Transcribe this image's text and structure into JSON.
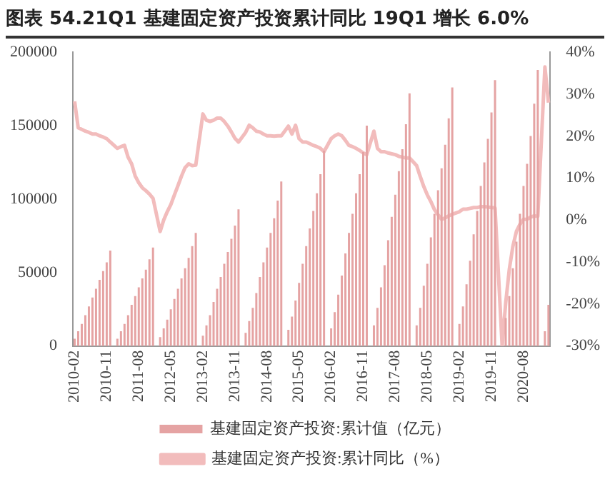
{
  "chart_data": {
    "type": "bar",
    "title": "图表 54.21Q1 基建固定资产投资累计同比 19Q1 增长 6.0%",
    "categories": [
      "2010-02",
      null,
      null,
      null,
      null,
      null,
      null,
      null,
      null,
      "2010-11",
      null,
      null,
      null,
      null,
      null,
      null,
      null,
      null,
      "2011-08",
      null,
      null,
      null,
      null,
      null,
      null,
      null,
      null,
      "2012-05",
      null,
      null,
      null,
      null,
      null,
      null,
      null,
      null,
      "2013-02",
      null,
      null,
      null,
      null,
      null,
      null,
      null,
      null,
      "2013-11",
      null,
      null,
      null,
      null,
      null,
      null,
      null,
      null,
      "2014-08",
      null,
      null,
      null,
      null,
      null,
      null,
      null,
      null,
      "2015-05",
      null,
      null,
      null,
      null,
      null,
      null,
      null,
      null,
      "2016-02",
      null,
      null,
      null,
      null,
      null,
      null,
      null,
      null,
      "2016-11",
      null,
      null,
      null,
      null,
      null,
      null,
      null,
      null,
      "2017-08",
      null,
      null,
      null,
      null,
      null,
      null,
      null,
      null,
      "2018-05",
      null,
      null,
      null,
      null,
      null,
      null,
      null,
      null,
      "2019-02",
      null,
      null,
      null,
      null,
      null,
      null,
      null,
      null,
      "2019-11",
      null,
      null,
      null,
      null,
      null,
      null,
      null,
      null,
      "2020-08",
      null,
      null,
      null,
      null,
      null,
      null,
      null
    ],
    "series": [
      {
        "name": "基建固定资产投资:累计值（亿元）",
        "color": "#e5a3a3",
        "values": [
          5000,
          10000,
          15000,
          21000,
          27000,
          33000,
          39000,
          45000,
          51000,
          57000,
          65000,
          null,
          5000,
          10000,
          15000,
          21000,
          28000,
          34000,
          40000,
          46000,
          52000,
          59000,
          67000,
          null,
          6000,
          12000,
          18000,
          25000,
          32000,
          39000,
          46000,
          53000,
          60000,
          68000,
          77000,
          null,
          7000,
          14000,
          21000,
          30000,
          39000,
          47000,
          56000,
          64000,
          73000,
          82000,
          93000,
          null,
          9000,
          17000,
          26000,
          36000,
          47000,
          57000,
          67000,
          77000,
          87000,
          99000,
          112000,
          null,
          11000,
          20000,
          31000,
          43000,
          56000,
          68000,
          80000,
          92000,
          104000,
          117000,
          133000,
          null,
          12000,
          23000,
          35000,
          48000,
          63000,
          77000,
          90000,
          104000,
          117000,
          132000,
          150000,
          null,
          14000,
          26000,
          40000,
          55000,
          72000,
          88000,
          103000,
          119000,
          134000,
          151000,
          172000,
          null,
          14000,
          26000,
          41000,
          56000,
          74000,
          90000,
          106000,
          121000,
          137000,
          155000,
          176000,
          null,
          15000,
          27000,
          42000,
          58000,
          76000,
          92000,
          109000,
          125000,
          141000,
          159000,
          181000,
          null,
          null,
          19000,
          34000,
          53000,
          71000,
          90000,
          109000,
          124000,
          143000,
          165000,
          188000,
          null,
          10000,
          28000
        ]
      },
      {
        "name": "基建固定资产投资:累计同比（%）",
        "type": "line",
        "axis": "y2",
        "color": "#f2bcbc",
        "values": [
          28.3,
          22,
          21.6,
          21.2,
          20.9,
          20.5,
          20.5,
          20.1,
          19.8,
          19.4,
          18.6,
          null,
          17.1,
          17.5,
          17.8,
          15,
          13.4,
          10.5,
          8.9,
          7.7,
          7,
          6.2,
          5.2,
          null,
          -2.7,
          0,
          2,
          3.7,
          6,
          8.2,
          10.5,
          12.5,
          13.4,
          13,
          13.1,
          null,
          25.3,
          23.8,
          23.5,
          23.8,
          24.3,
          24.3,
          23.5,
          22.4,
          21,
          19.5,
          18.6,
          null,
          20.9,
          22.6,
          22,
          21.2,
          21,
          20.5,
          20.1,
          20.1,
          20,
          20.1,
          20.1,
          null,
          22.4,
          20.5,
          22.6,
          19.4,
          18.6,
          18.6,
          18.2,
          17.8,
          17.5,
          17.1,
          16.3,
          null,
          19.4,
          20.1,
          20.5,
          20.1,
          19,
          17.8,
          17.5,
          17.1,
          16.6,
          16,
          15.6,
          null,
          21.2,
          17.1,
          16.3,
          16.3,
          16,
          15.8,
          15.6,
          15.2,
          15,
          14.8,
          14.8,
          null,
          13,
          10.4,
          8,
          6,
          4.4,
          2.5,
          1.3,
          0.2,
          0.5,
          1,
          1.4,
          null,
          2,
          2.6,
          2.6,
          2.8,
          3,
          3,
          3.2,
          3.2,
          3.1,
          3,
          2.9,
          null,
          -30,
          -19.7,
          -11.8,
          -6.3,
          -2.7,
          -1,
          0.2,
          0.2,
          0.7,
          1,
          0.9,
          null,
          36.5,
          28
        ]
      }
    ],
    "ylim": [
      0,
      200000
    ],
    "yticks": [
      0,
      50000,
      100000,
      150000,
      200000
    ],
    "y2lim": [
      -30,
      40
    ],
    "y2ticks": [
      {
        "value": -30,
        "label": "-30%"
      },
      {
        "value": -20,
        "label": "-20%"
      },
      {
        "value": -10,
        "label": "-10%"
      },
      {
        "value": 0,
        "label": "0%"
      },
      {
        "value": 10,
        "label": "10%"
      },
      {
        "value": 20,
        "label": "20%"
      },
      {
        "value": 30,
        "label": "30%"
      },
      {
        "value": 40,
        "label": "40%"
      }
    ],
    "grid": false,
    "legend": "bottom",
    "marker": "none",
    "line_style": "solid"
  }
}
